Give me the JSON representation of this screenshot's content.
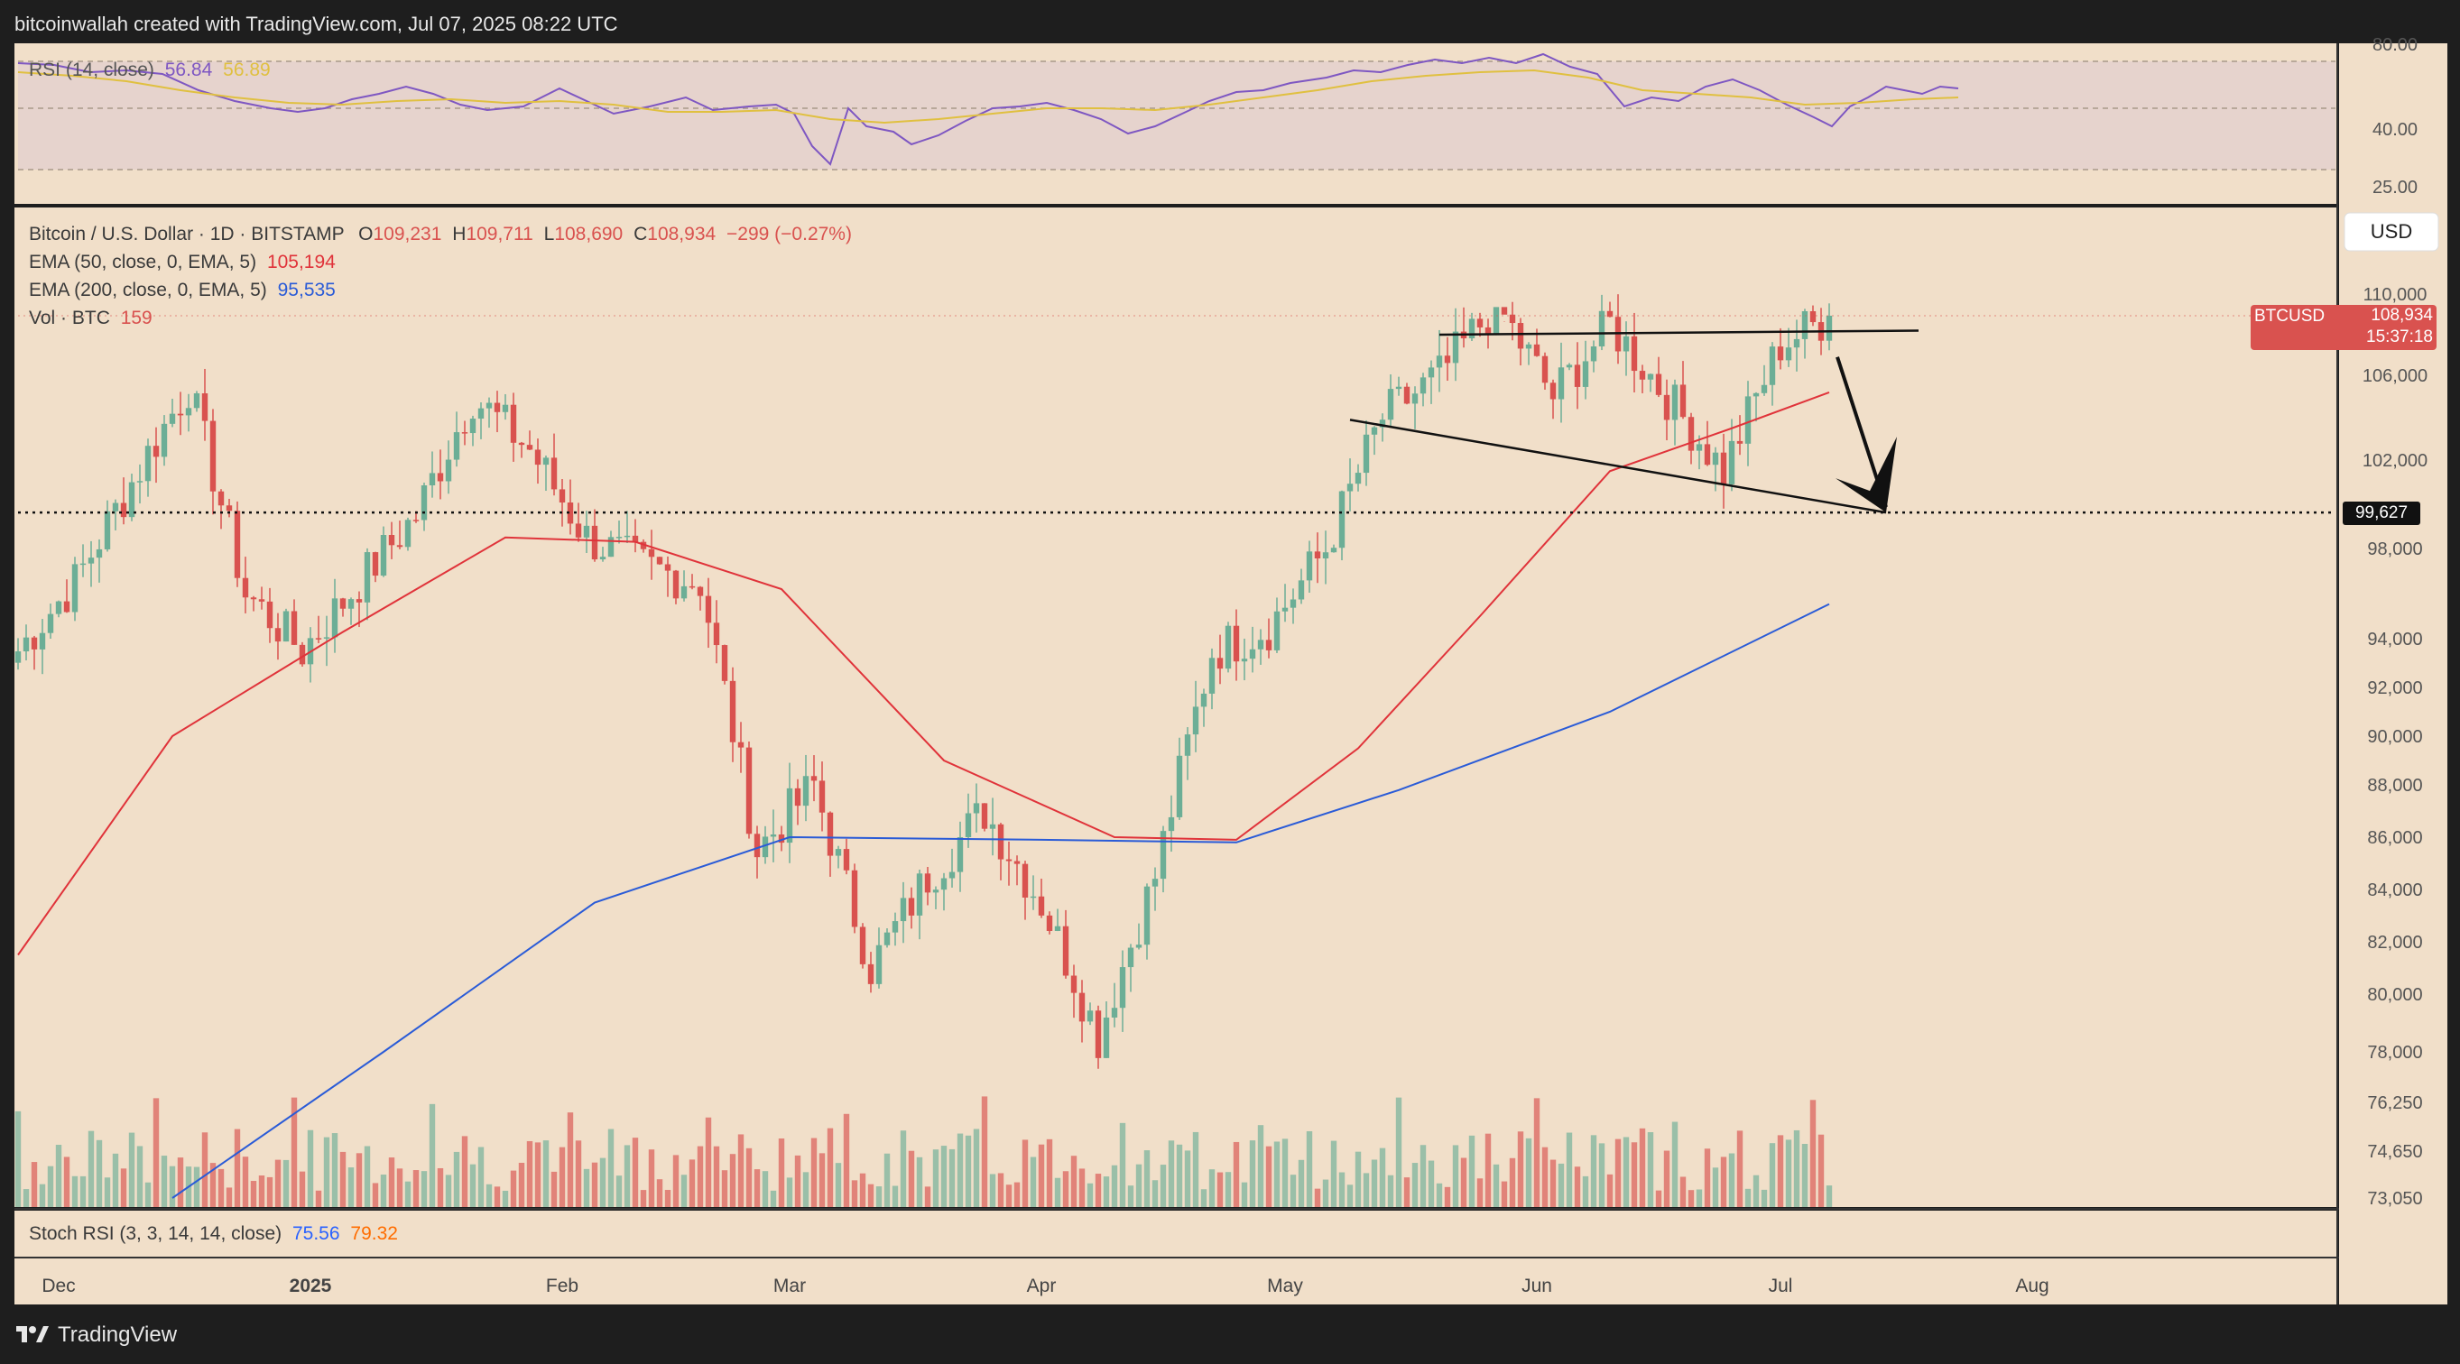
{
  "header": {
    "credit": "bitcoinwallah created with TradingView.com, Jul 07, 2025 08:22 UTC"
  },
  "footer": {
    "brand": "TradingView"
  },
  "colors": {
    "frame": "#1e1e1e",
    "pane_bg": "#f1dfc9",
    "rsi_band": "#e6d3cd",
    "up": "#6cae96",
    "down": "#d9524f",
    "ema50": "#e0333a",
    "ema200": "#2a5bd7",
    "rsi_line": "#7e57c2",
    "rsi_ma": "#e0c040",
    "stoch_k": "#2962ff",
    "stoch_d": "#ff6d00",
    "price_tag": "#d9524f"
  },
  "rsi_pane": {
    "label": "RSI (14, close)",
    "value": "56.84",
    "ma_value": "56.89",
    "ticks": [
      "80.00",
      "40.00",
      "25.00"
    ]
  },
  "legend": {
    "symbol": "Bitcoin / U.S. Dollar · 1D · BITSTAMP",
    "o_label": "O",
    "o": "109,231",
    "h_label": "H",
    "h": "109,711",
    "l_label": "L",
    "l": "108,690",
    "c_label": "C",
    "c": "108,934",
    "change": "−299 (−0.27%)",
    "ema50_label": "EMA (50, close, 0, EMA, 5)",
    "ema50_value": "105,194",
    "ema200_label": "EMA (200, close, 0, EMA, 5)",
    "ema200_value": "95,535",
    "vol_label": "Vol · BTC",
    "vol_value": "159"
  },
  "currency_button": "USD",
  "price_tag": {
    "symbol": "BTCUSD",
    "price": "108,934",
    "countdown": "15:37:18"
  },
  "level_tag": "99,627",
  "stoch_pane": {
    "label": "Stoch RSI (3, 3, 14, 14, close)",
    "k": "75.56",
    "d": "79.32"
  },
  "chart_data": {
    "type": "candlestick",
    "title": "Bitcoin / U.S. Dollar · 1D · BITSTAMP",
    "x_labels": [
      "Dec",
      "2025",
      "Feb",
      "Mar",
      "Apr",
      "May",
      "Jun",
      "Jul",
      "Aug"
    ],
    "x_label_dates": [
      "2024-12-01",
      "2025-01-01",
      "2025-02-01",
      "2025-03-01",
      "2025-04-01",
      "2025-05-01",
      "2025-06-01",
      "2025-07-01",
      "2025-08-01"
    ],
    "y_ticks": [
      "110,000",
      "106,000",
      "102,000",
      "98,000",
      "94,000",
      "92,000",
      "90,000",
      "88,000",
      "86,000",
      "84,000",
      "82,000",
      "80,000",
      "78,000",
      "76,250",
      "74,650",
      "73,050"
    ],
    "date_range": [
      "2024-11-26",
      "2025-07-07"
    ],
    "price_path_weekly": [
      [
        "2024-11-26",
        93500
      ],
      [
        "2024-12-03",
        96500
      ],
      [
        "2024-12-10",
        101000
      ],
      [
        "2024-12-17",
        105500
      ],
      [
        "2024-12-24",
        96000
      ],
      [
        "2024-12-31",
        93500
      ],
      [
        "2025-01-07",
        96500
      ],
      [
        "2025-01-14",
        99500
      ],
      [
        "2025-01-21",
        105000
      ],
      [
        "2025-01-28",
        102500
      ],
      [
        "2025-02-04",
        98500
      ],
      [
        "2025-02-11",
        97200
      ],
      [
        "2025-02-18",
        96500
      ],
      [
        "2025-02-25",
        85500
      ],
      [
        "2025-03-04",
        88000
      ],
      [
        "2025-03-11",
        81000
      ],
      [
        "2025-03-18",
        84500
      ],
      [
        "2025-03-25",
        87000
      ],
      [
        "2025-04-01",
        83500
      ],
      [
        "2025-04-08",
        78500
      ],
      [
        "2025-04-15",
        84500
      ],
      [
        "2025-04-22",
        93500
      ],
      [
        "2025-04-29",
        94500
      ],
      [
        "2025-05-06",
        98000
      ],
      [
        "2025-05-13",
        104000
      ],
      [
        "2025-05-20",
        106000
      ],
      [
        "2025-05-27",
        109500
      ],
      [
        "2025-06-03",
        105000
      ],
      [
        "2025-06-10",
        108500
      ],
      [
        "2025-06-17",
        105000
      ],
      [
        "2025-06-24",
        101500
      ],
      [
        "2025-07-01",
        107500
      ],
      [
        "2025-07-07",
        108934
      ]
    ],
    "ema50_path": [
      [
        "2024-11-26",
        81500
      ],
      [
        "2024-12-15",
        90000
      ],
      [
        "2025-01-05",
        94300
      ],
      [
        "2025-01-25",
        98500
      ],
      [
        "2025-02-10",
        98300
      ],
      [
        "2025-02-28",
        96200
      ],
      [
        "2025-03-20",
        89000
      ],
      [
        "2025-04-10",
        86000
      ],
      [
        "2025-04-25",
        85900
      ],
      [
        "2025-05-10",
        89500
      ],
      [
        "2025-05-25",
        95000
      ],
      [
        "2025-06-10",
        101500
      ],
      [
        "2025-06-25",
        103500
      ],
      [
        "2025-07-07",
        105194
      ]
    ],
    "ema200_path": [
      [
        "2024-12-15",
        72800
      ],
      [
        "2025-01-10",
        78000
      ],
      [
        "2025-02-05",
        83500
      ],
      [
        "2025-03-01",
        86000
      ],
      [
        "2025-04-01",
        85900
      ],
      [
        "2025-04-25",
        85800
      ],
      [
        "2025-05-15",
        87800
      ],
      [
        "2025-06-10",
        91000
      ],
      [
        "2025-07-07",
        95535
      ]
    ],
    "channel_upper": [
      [
        "2025-05-20",
        112000
      ],
      [
        "2025-07-18",
        108200
      ]
    ],
    "channel_lower": [
      [
        "2025-05-09",
        103900
      ],
      [
        "2025-07-14",
        99627
      ]
    ],
    "horizontal_level": 99627,
    "last_price": 108934,
    "projection_arrow": [
      [
        "2025-07-08",
        106900
      ],
      [
        "2025-07-14",
        99627
      ]
    ],
    "rsi_ticks": [
      80,
      40,
      25
    ]
  }
}
